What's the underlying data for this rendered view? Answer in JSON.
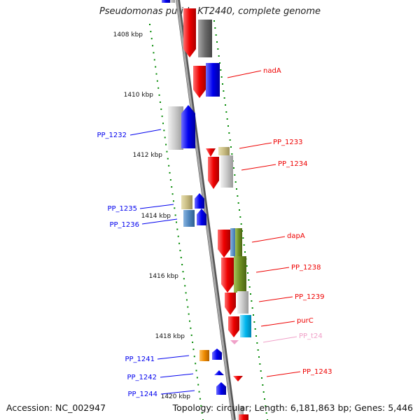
{
  "title": "Pseudomonas putida KT2440, complete genome",
  "footer": {
    "accession": "Accession: NC_002947",
    "summary": "Topology: circular; Length: 6,181,863 bp; Genes: 5,446"
  },
  "colors": {
    "red": "#ee0000",
    "blue": "#0000ee",
    "dark_gray": "#6b6b6b",
    "light_gray": "#c8c8c8",
    "khaki": "#c8bc82",
    "steel_blue": "#4f86bd",
    "olive": "#6f8f22",
    "cyan": "#00b6ee",
    "orange": "#ee8a00",
    "pink": "#f0a0c8",
    "tick_green": "#008800"
  },
  "kbp_labels": [
    "1408 kbp",
    "1410 kbp",
    "1412 kbp",
    "1414 kbp",
    "1416 kbp",
    "1418 kbp",
    "1420 kbp"
  ],
  "gene_labels": {
    "right": [
      "nadA",
      "PP_1233",
      "PP_1234",
      "dapA",
      "PP_1238",
      "PP_1239",
      "purC",
      "PP_t24",
      "PP_1243"
    ],
    "left": [
      "PP_1232",
      "PP_1235",
      "PP_1236",
      "PP_1241",
      "PP_1242",
      "PP_1244"
    ]
  }
}
